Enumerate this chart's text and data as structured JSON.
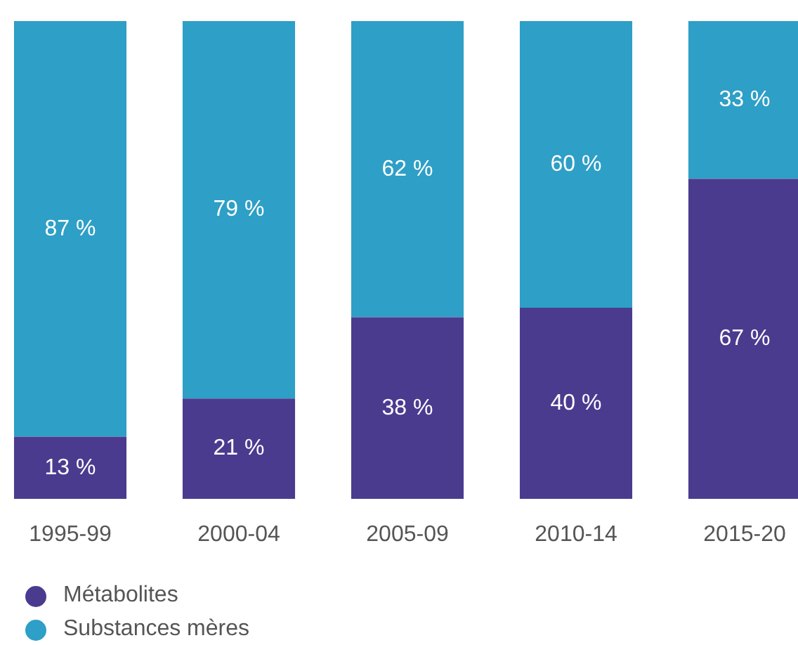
{
  "chart_data": {
    "type": "bar",
    "stacked": true,
    "categories": [
      "1995-99",
      "2000-04",
      "2005-09",
      "2010-14",
      "2015-20"
    ],
    "series": [
      {
        "name": "Métabolites",
        "color": "#4b3b8f",
        "values": [
          13,
          21,
          38,
          40,
          67
        ],
        "value_labels": [
          "13 %",
          "21 %",
          "38 %",
          "40 %",
          "67 %"
        ]
      },
      {
        "name": "Substances mères",
        "color": "#2e9fc6",
        "values": [
          87,
          79,
          62,
          60,
          33
        ],
        "value_labels": [
          "87 %",
          "79 %",
          "62 %",
          "60 %",
          "33 %"
        ]
      }
    ],
    "ylim": [
      0,
      100
    ],
    "tick_labels": "x",
    "grid": false,
    "legend": "bottom left"
  }
}
